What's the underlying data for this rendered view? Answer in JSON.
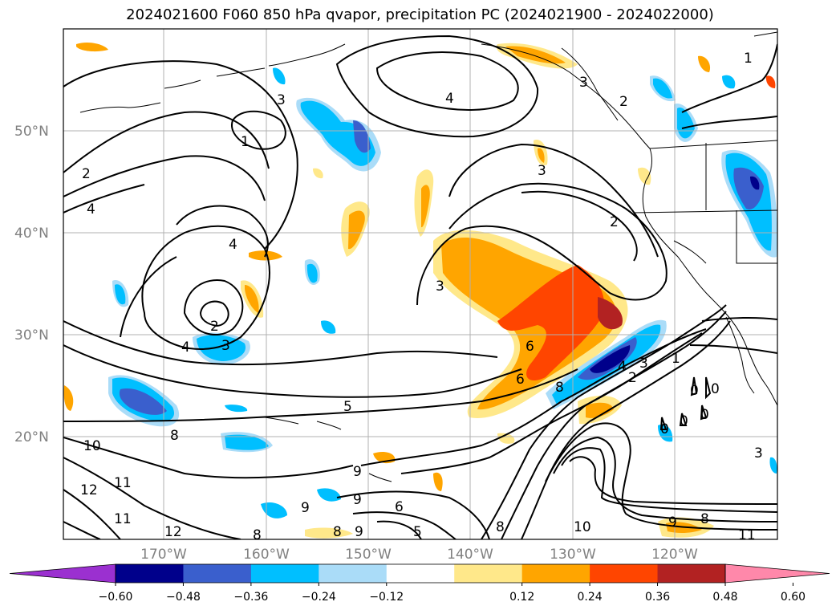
{
  "title": "2024021600 F060 850 hPa qvapor, precipitation PC (2024021900 - 2024022000)",
  "lat_ticks": [
    "50°N",
    "40°N",
    "30°N",
    "20°N"
  ],
  "lon_ticks": [
    "170°W",
    "160°W",
    "150°W",
    "140°W",
    "130°W",
    "120°W"
  ],
  "colorbar": {
    "tick_labels": [
      "−0.60",
      "−0.48",
      "−0.36",
      "−0.24",
      "−0.12",
      "0.12",
      "0.24",
      "0.36",
      "0.48",
      "0.60"
    ],
    "colors": [
      "#9b30d0",
      "#00008b",
      "#3a5fcd",
      "#00bfff",
      "#aadcf8",
      "#ffffff",
      "#ffe88a",
      "#ffa500",
      "#ff4500",
      "#b22222",
      "#ff88aa"
    ]
  },
  "contour_labels": [
    "1",
    "2",
    "4",
    "4",
    "3",
    "1",
    "3",
    "2",
    "4",
    "3",
    "2",
    "4",
    "3",
    "6",
    "6",
    "8",
    "3",
    "2",
    "1",
    "2",
    "3",
    "4",
    "5",
    "4",
    "8",
    "10",
    "12",
    "11",
    "11",
    "12",
    "9",
    "9",
    "9",
    "8",
    "8",
    "9",
    "6",
    "5",
    "8",
    "10",
    "9",
    "8",
    "11",
    "0",
    "0",
    "0",
    "0",
    "0",
    "3"
  ]
}
